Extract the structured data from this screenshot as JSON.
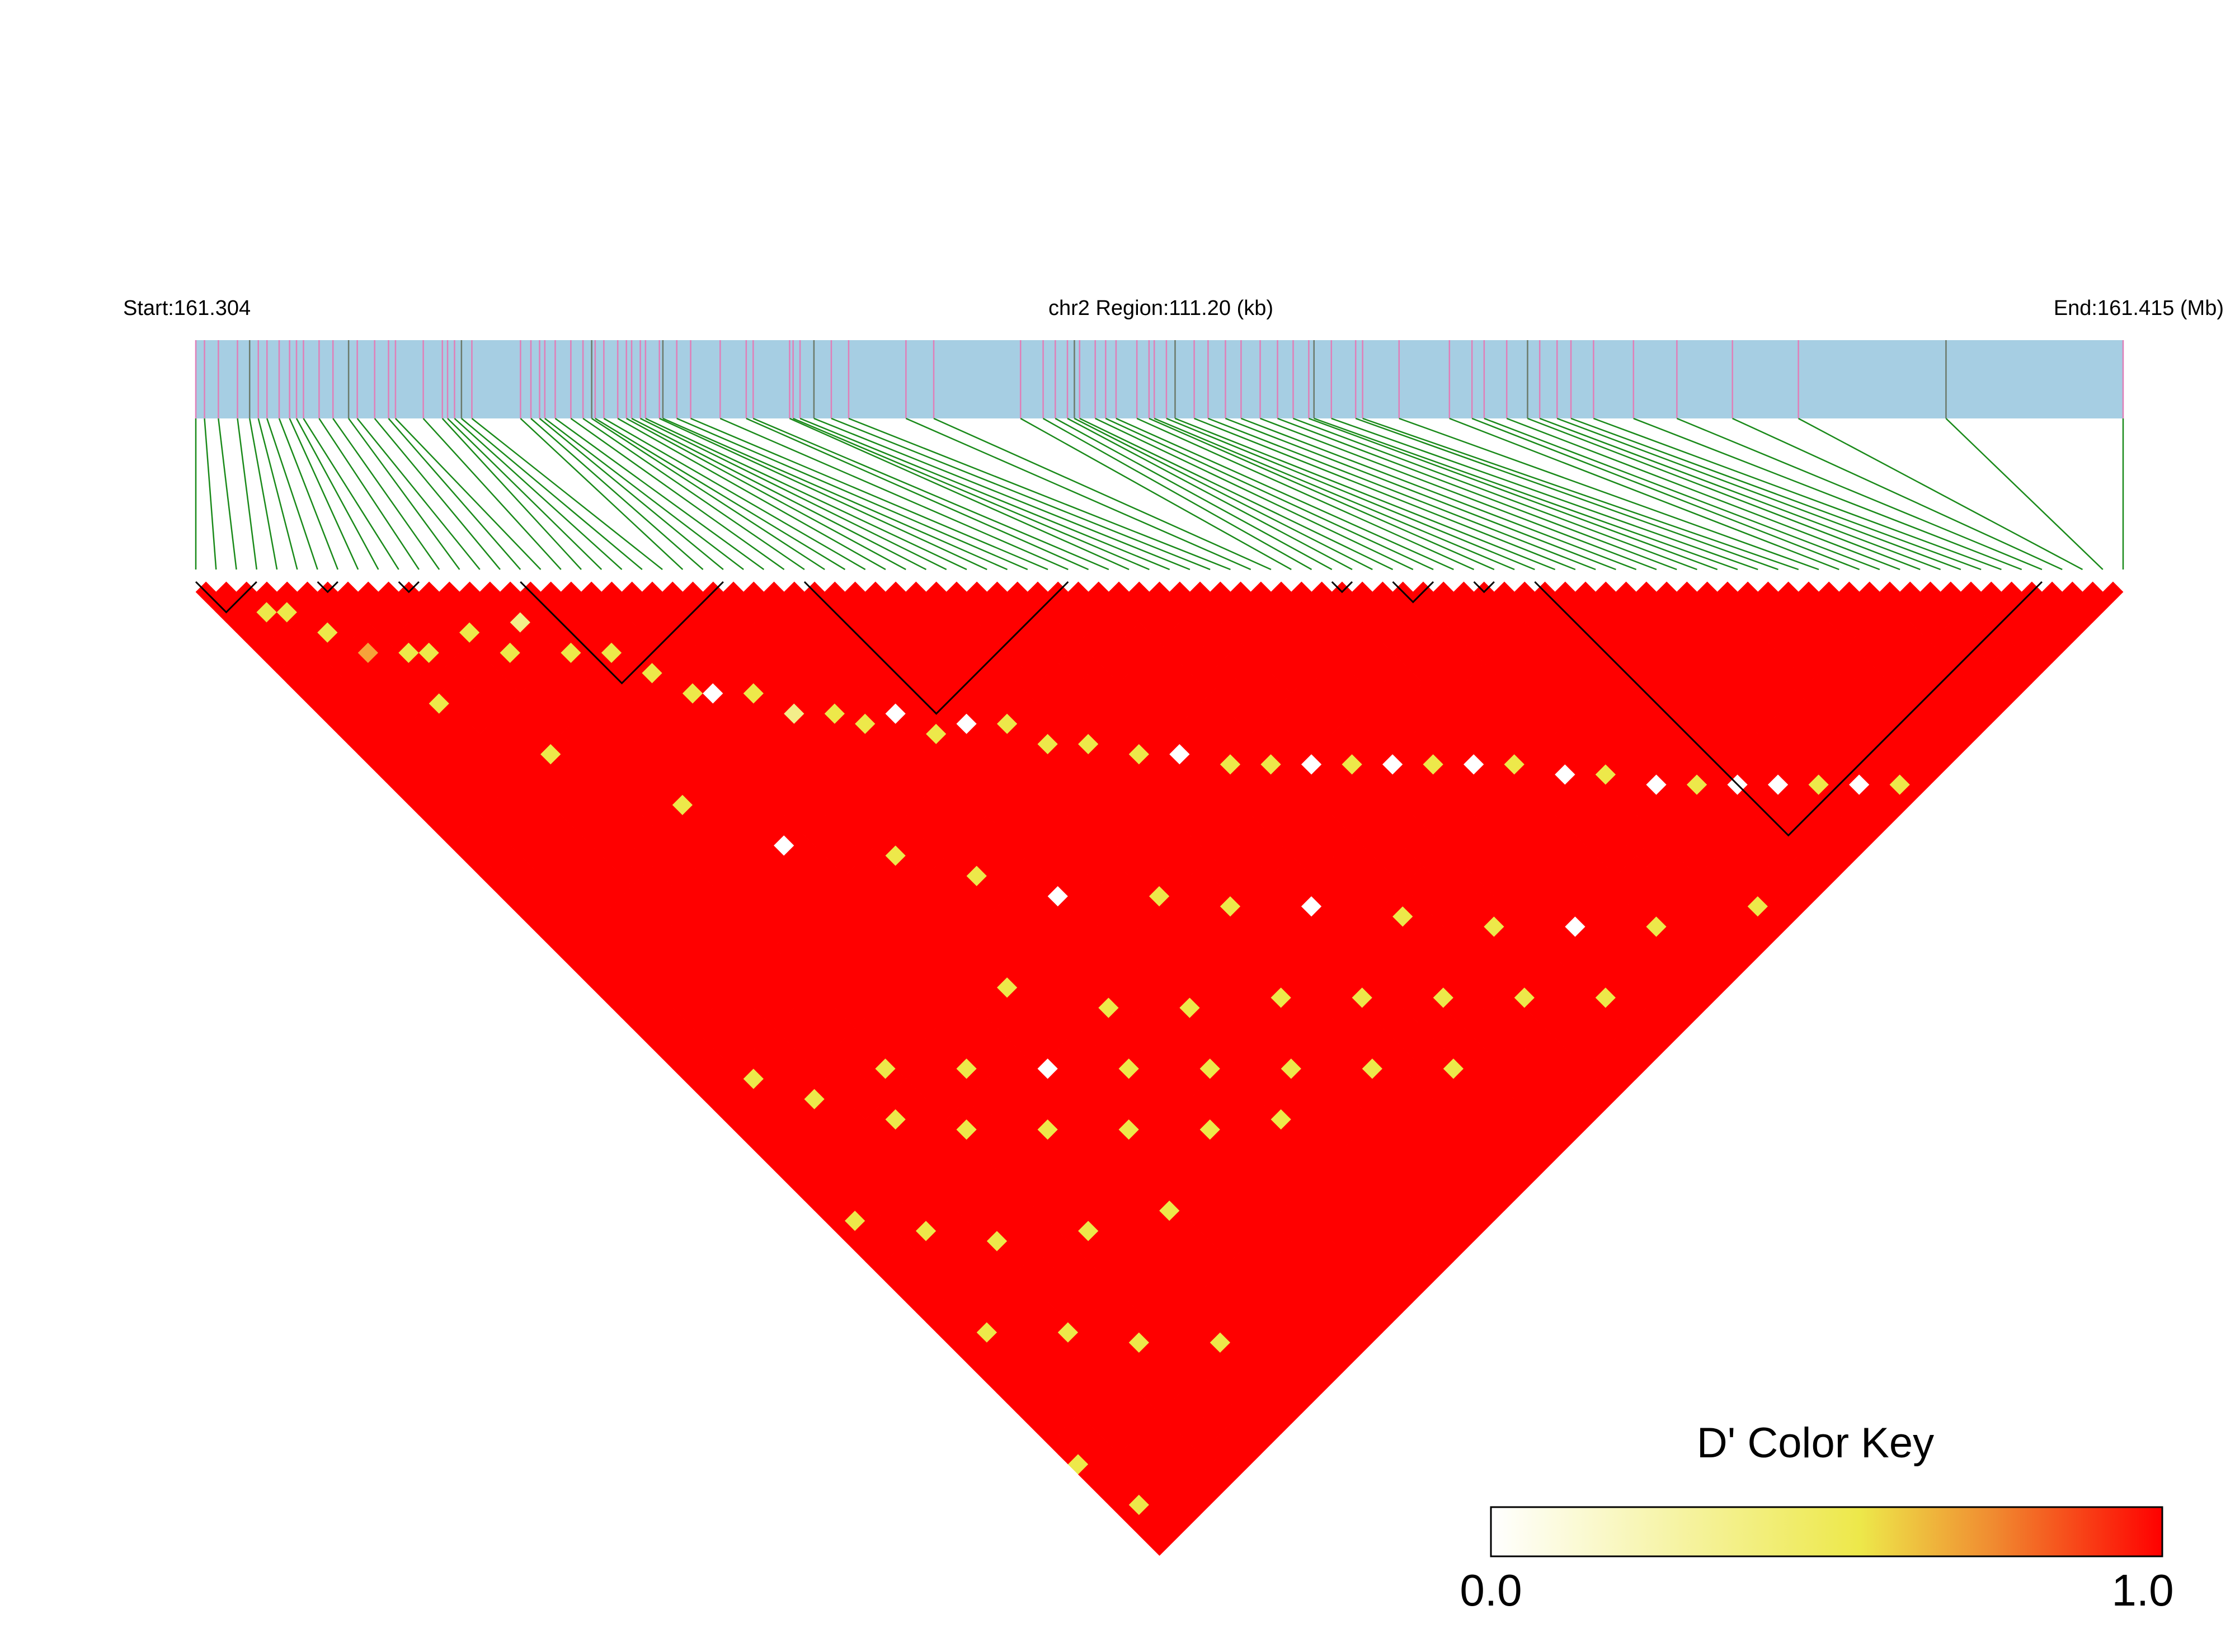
{
  "header": {
    "start_label": "Start:161.304",
    "region_label": "chr2 Region:111.20 (kb)",
    "end_label": "End:161.415 (Mb)"
  },
  "colors": {
    "track_bg": "#a6cee3",
    "snp_tick": "#e07fb8",
    "snp_tick_dark": "#6b7a6b",
    "connector": "#1a8a1a",
    "ld_high": "#ff0000",
    "block_outline": "#000000",
    "key_low": "#ffffff",
    "key_mid": "#ede84a",
    "key_high": "#ff0000"
  },
  "legend": {
    "title": "D' Color Key",
    "min_label": "0.0",
    "max_label": "1.0"
  },
  "chart_data": {
    "type": "heatmap",
    "title": "",
    "measure": "D'",
    "chromosome": "chr2",
    "region_start_mb": 161.304,
    "region_end_mb": 161.415,
    "region_length_kb": 111.2,
    "snp_count": 96,
    "snp_positions_mb": [
      161.304,
      161.3045,
      161.3053,
      161.3064,
      161.3071,
      161.3076,
      161.3081,
      161.3088,
      161.3094,
      161.3098,
      161.3102,
      161.3111,
      161.3119,
      161.3128,
      161.3133,
      161.3143,
      161.3151,
      161.3155,
      161.3171,
      161.3182,
      161.3185,
      161.3189,
      161.3193,
      161.3199,
      161.3227,
      161.3233,
      161.3238,
      161.3241,
      161.3247,
      161.3256,
      161.3263,
      161.3268,
      161.327,
      161.3275,
      161.3283,
      161.3288,
      161.3291,
      161.3296,
      161.3299,
      161.3307,
      161.3309,
      161.3317,
      161.3325,
      161.3342,
      161.3357,
      161.3361,
      161.3382,
      161.3384,
      161.3388,
      161.3396,
      161.3406,
      161.3416,
      161.3449,
      161.3465,
      161.3515,
      161.3528,
      161.3535,
      161.3542,
      161.3546,
      161.3549,
      161.3558,
      161.3564,
      161.357,
      161.3582,
      161.3589,
      161.3592,
      161.3599,
      161.3604,
      161.3615,
      161.3623,
      161.3633,
      161.3642,
      161.3653,
      161.3663,
      161.3672,
      161.3681,
      161.3684,
      161.3694,
      161.3708,
      161.3712,
      161.3733,
      161.3762,
      161.3775,
      161.3782,
      161.3795,
      161.3807,
      161.3814,
      161.3824,
      161.3832,
      161.3845,
      161.3868,
      161.3893,
      161.3925,
      161.3963,
      161.4048,
      161.415
    ],
    "ld_blocks": [
      [
        0,
        3
      ],
      [
        6,
        7
      ],
      [
        10,
        11
      ],
      [
        16,
        26
      ],
      [
        30,
        43
      ],
      [
        56,
        57
      ],
      [
        59,
        61
      ],
      [
        63,
        64
      ],
      [
        66,
        91
      ]
    ],
    "low_dprime_pairs": [
      {
        "i": 2,
        "j": 5,
        "d": 0.55
      },
      {
        "i": 3,
        "j": 6,
        "d": 0.5
      },
      {
        "i": 4,
        "j": 9,
        "d": 0.6
      },
      {
        "i": 5,
        "j": 12,
        "d": 0.7
      },
      {
        "i": 7,
        "j": 14,
        "d": 0.5
      },
      {
        "i": 8,
        "j": 15,
        "d": 0.55
      },
      {
        "i": 11,
        "j": 16,
        "d": 0.5
      },
      {
        "i": 12,
        "j": 19,
        "d": 0.6
      },
      {
        "i": 14,
        "j": 18,
        "d": 0.45
      },
      {
        "i": 15,
        "j": 22,
        "d": 0.5
      },
      {
        "i": 17,
        "j": 24,
        "d": 0.6
      },
      {
        "i": 18,
        "j": 27,
        "d": 0.5
      },
      {
        "i": 19,
        "j": 30,
        "d": 0.55
      },
      {
        "i": 20,
        "j": 31,
        "d": 0.0
      },
      {
        "i": 22,
        "j": 33,
        "d": 0.5
      },
      {
        "i": 23,
        "j": 36,
        "d": 0.45
      },
      {
        "i": 25,
        "j": 38,
        "d": 0.55
      },
      {
        "i": 26,
        "j": 40,
        "d": 0.5
      },
      {
        "i": 28,
        "j": 41,
        "d": 0.0
      },
      {
        "i": 29,
        "j": 44,
        "d": 0.6
      },
      {
        "i": 31,
        "j": 45,
        "d": 0.0
      },
      {
        "i": 33,
        "j": 47,
        "d": 0.5
      },
      {
        "i": 34,
        "j": 50,
        "d": 0.55
      },
      {
        "i": 36,
        "j": 52,
        "d": 0.5
      },
      {
        "i": 38,
        "j": 55,
        "d": 0.6
      },
      {
        "i": 40,
        "j": 57,
        "d": 0.0
      },
      {
        "i": 42,
        "j": 60,
        "d": 0.5
      },
      {
        "i": 44,
        "j": 62,
        "d": 0.55
      },
      {
        "i": 46,
        "j": 64,
        "d": 0.0
      },
      {
        "i": 48,
        "j": 66,
        "d": 0.5
      },
      {
        "i": 50,
        "j": 68,
        "d": 0.0
      },
      {
        "i": 52,
        "j": 70,
        "d": 0.55
      },
      {
        "i": 54,
        "j": 72,
        "d": 0.0
      },
      {
        "i": 56,
        "j": 74,
        "d": 0.5
      },
      {
        "i": 58,
        "j": 77,
        "d": 0.0
      },
      {
        "i": 60,
        "j": 79,
        "d": 0.5
      },
      {
        "i": 62,
        "j": 82,
        "d": 0.0
      },
      {
        "i": 64,
        "j": 84,
        "d": 0.55
      },
      {
        "i": 66,
        "j": 86,
        "d": 0.0
      },
      {
        "i": 68,
        "j": 88,
        "d": 0.0
      },
      {
        "i": 70,
        "j": 90,
        "d": 0.5
      },
      {
        "i": 72,
        "j": 92,
        "d": 0.0
      },
      {
        "i": 74,
        "j": 94,
        "d": 0.55
      },
      {
        "i": 6,
        "j": 18,
        "d": 0.6
      },
      {
        "i": 9,
        "j": 26,
        "d": 0.55
      },
      {
        "i": 13,
        "j": 35,
        "d": 0.5
      },
      {
        "i": 16,
        "j": 42,
        "d": 0.0
      },
      {
        "i": 21,
        "j": 48,
        "d": 0.55
      },
      {
        "i": 24,
        "j": 53,
        "d": 0.5
      },
      {
        "i": 27,
        "j": 58,
        "d": 0.0
      },
      {
        "i": 32,
        "j": 63,
        "d": 0.5
      },
      {
        "i": 35,
        "j": 67,
        "d": 0.55
      },
      {
        "i": 39,
        "j": 71,
        "d": 0.0
      },
      {
        "i": 43,
        "j": 76,
        "d": 0.5
      },
      {
        "i": 47,
        "j": 81,
        "d": 0.55
      },
      {
        "i": 51,
        "j": 85,
        "d": 0.0
      },
      {
        "i": 55,
        "j": 89,
        "d": 0.5
      },
      {
        "i": 61,
        "j": 93,
        "d": 0.55
      },
      {
        "i": 20,
        "j": 60,
        "d": 0.5
      },
      {
        "i": 24,
        "j": 66,
        "d": 0.55
      },
      {
        "i": 28,
        "j": 70,
        "d": 0.5
      },
      {
        "i": 33,
        "j": 74,
        "d": 0.6
      },
      {
        "i": 37,
        "j": 78,
        "d": 0.5
      },
      {
        "i": 41,
        "j": 82,
        "d": 0.55
      },
      {
        "i": 45,
        "j": 86,
        "d": 0.6
      },
      {
        "i": 49,
        "j": 90,
        "d": 0.5
      },
      {
        "i": 10,
        "j": 58,
        "d": 0.5
      },
      {
        "i": 14,
        "j": 62,
        "d": 0.55
      },
      {
        "i": 18,
        "j": 66,
        "d": 0.0
      },
      {
        "i": 22,
        "j": 70,
        "d": 0.5
      },
      {
        "i": 26,
        "j": 74,
        "d": 0.55
      },
      {
        "i": 30,
        "j": 78,
        "d": 0.5
      },
      {
        "i": 34,
        "j": 82,
        "d": 0.6
      },
      {
        "i": 38,
        "j": 86,
        "d": 0.5
      },
      {
        "i": 3,
        "j": 52,
        "d": 0.55
      },
      {
        "i": 5,
        "j": 56,
        "d": 0.5
      },
      {
        "i": 8,
        "j": 61,
        "d": 0.6
      },
      {
        "i": 11,
        "j": 65,
        "d": 0.5
      },
      {
        "i": 15,
        "j": 69,
        "d": 0.55
      },
      {
        "i": 19,
        "j": 73,
        "d": 0.6
      },
      {
        "i": 23,
        "j": 77,
        "d": 0.5
      },
      {
        "i": 27,
        "j": 80,
        "d": 0.55
      },
      {
        "i": 1,
        "j": 64,
        "d": 0.5
      },
      {
        "i": 4,
        "j": 68,
        "d": 0.55
      },
      {
        "i": 7,
        "j": 72,
        "d": 0.6
      },
      {
        "i": 12,
        "j": 76,
        "d": 0.5
      },
      {
        "i": 17,
        "j": 79,
        "d": 0.55
      },
      {
        "i": 2,
        "j": 76,
        "d": 0.6
      },
      {
        "i": 6,
        "j": 80,
        "d": 0.5
      },
      {
        "i": 0,
        "j": 87,
        "d": 0.5
      },
      {
        "i": 9,
        "j": 84,
        "d": 0.55
      },
      {
        "i": 13,
        "j": 88,
        "d": 0.6
      },
      {
        "i": 1,
        "j": 92,
        "d": 0.5
      }
    ]
  }
}
